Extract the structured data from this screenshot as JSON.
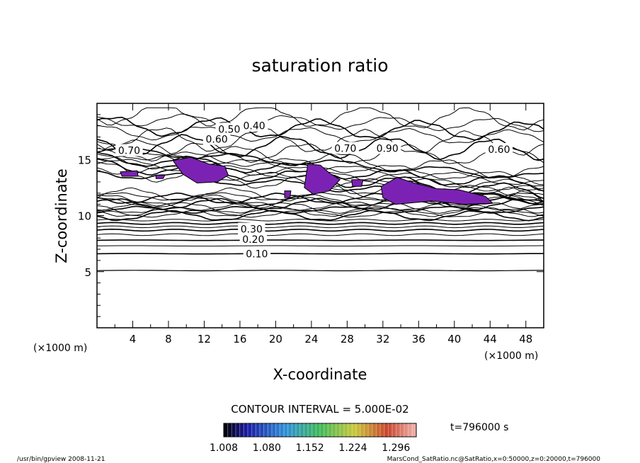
{
  "chart_data": {
    "type": "contour",
    "title": "saturation ratio",
    "xlabel": "X-coordinate",
    "ylabel": "Z-coordinate",
    "x_unit": "(×1000 m)",
    "y_unit": "(×1000 m)",
    "xlim": [
      0,
      50
    ],
    "ylim": [
      0,
      20
    ],
    "x_ticks": [
      4,
      8,
      12,
      16,
      20,
      24,
      28,
      32,
      36,
      40,
      44,
      48
    ],
    "y_ticks": [
      5,
      10,
      15
    ],
    "contour_interval_text": "CONTOUR INTERVAL = 5.000E-02",
    "contour_labels": [
      {
        "text": "0.10",
        "x": 17.9,
        "z": 6.6
      },
      {
        "text": "0.20",
        "x": 17.5,
        "z": 7.9
      },
      {
        "text": "0.30",
        "x": 17.3,
        "z": 8.8
      },
      {
        "text": "0.40",
        "x": 17.6,
        "z": 18.0
      },
      {
        "text": "0.50",
        "x": 14.8,
        "z": 17.7
      },
      {
        "text": "0.60",
        "x": 13.4,
        "z": 16.8
      },
      {
        "text": "0.70",
        "x": 3.6,
        "z": 15.8
      },
      {
        "text": "0.70",
        "x": 27.8,
        "z": 16.0
      },
      {
        "text": "0.90",
        "x": 32.5,
        "z": 16.0
      },
      {
        "text": "0.60",
        "x": 45.0,
        "z": 15.9
      }
    ],
    "shaded_level_min": 1.008,
    "colorbar": {
      "ticks": [
        "1.008",
        "1.080",
        "1.152",
        "1.224",
        "1.296"
      ],
      "range": [
        1.008,
        1.33
      ]
    },
    "time_label": "t=796000 s"
  },
  "footer": {
    "left": "/usr/bin/gpview   2008-11-21",
    "right": "MarsCond_SatRatio.nc@SatRatio,x=0:50000,z=0:20000,t=796000"
  }
}
